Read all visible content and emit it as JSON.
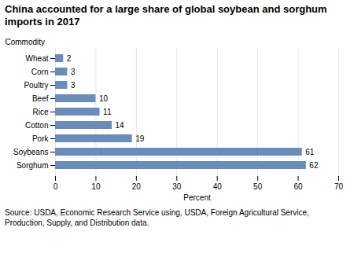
{
  "chart_data": {
    "type": "bar",
    "orientation": "horizontal",
    "title": "China accounted for a large share of global soybean and sorghum imports in 2017",
    "categories": [
      "Sorghum",
      "Soybeans",
      "Pork",
      "Cotton",
      "Rice",
      "Beef",
      "Poultry",
      "Corn",
      "Wheat"
    ],
    "values": [
      62,
      61,
      19,
      14,
      11,
      10,
      3,
      3,
      2
    ],
    "color": "#6b8cba",
    "xlabel": "Percent",
    "ylabel": "Commodity",
    "xlim": [
      0,
      70
    ],
    "xticks": [
      0,
      10,
      20,
      30,
      40,
      50,
      60,
      70
    ],
    "grid": true,
    "data_labels": true,
    "annotations": [
      "Source: USDA, Economic Research Service using, USDA, Foreign Agricultural Service,\nProduction, Supply, and Distribution data."
    ]
  }
}
